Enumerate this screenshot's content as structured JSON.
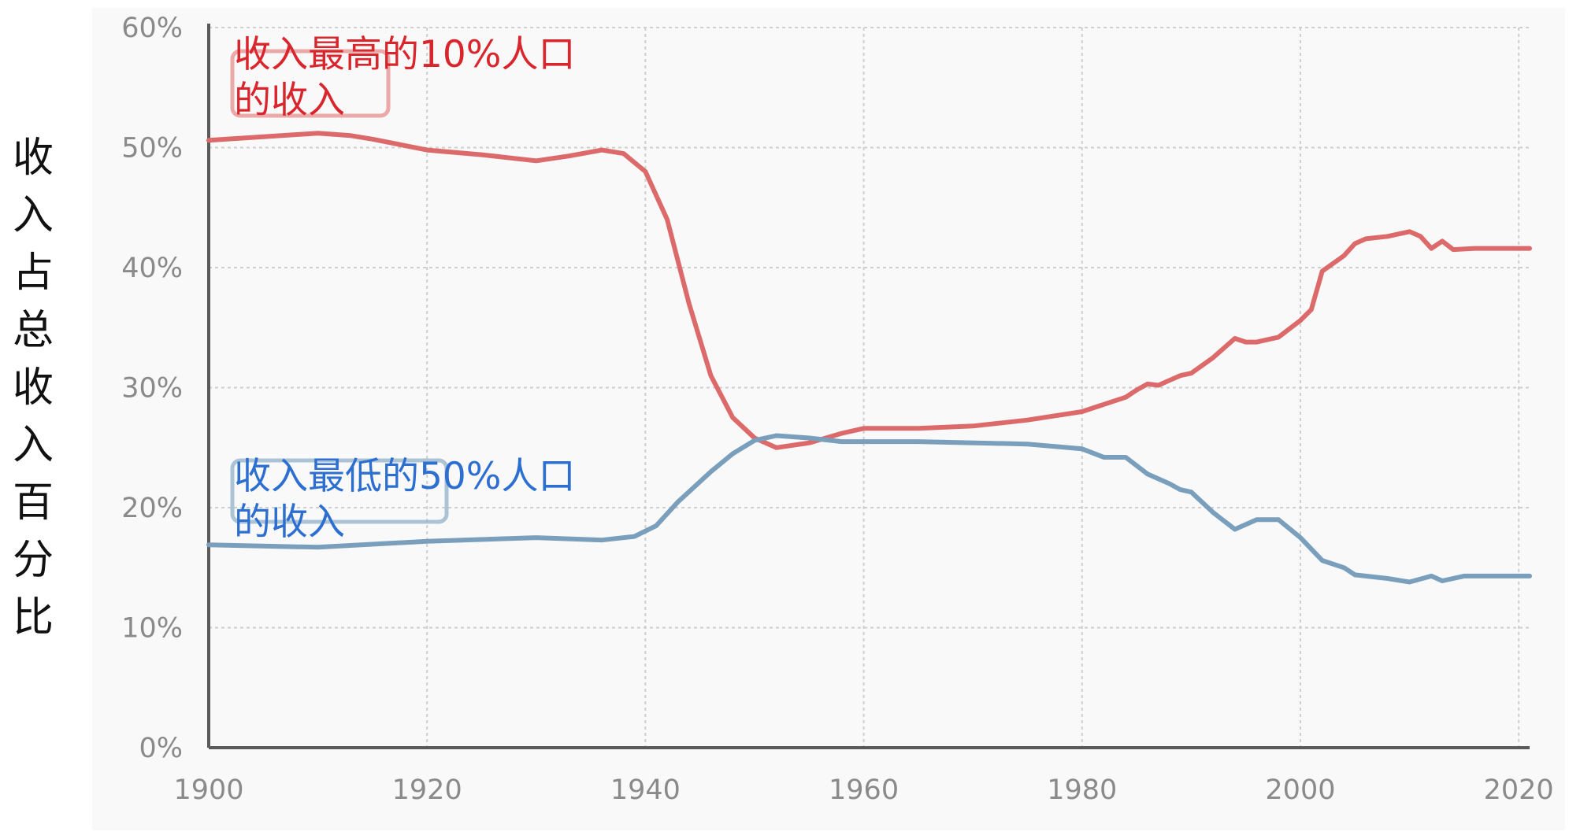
{
  "chart_data": {
    "type": "line",
    "ylabel": "收入占总收入百分比",
    "xlabel": "",
    "xlim": [
      1900,
      2021
    ],
    "ylim": [
      0,
      60
    ],
    "x_ticks": [
      "1900",
      "1920",
      "1940",
      "1960",
      "1980",
      "2000",
      "2020"
    ],
    "y_ticks": [
      "0%",
      "10%",
      "20%",
      "30%",
      "40%",
      "50%",
      "60%"
    ],
    "grid": true,
    "legend_placement": "none",
    "annotations": [
      {
        "text": "收入最高的10%人口\n的收入",
        "series": 0
      },
      {
        "text": "收入最低的50%人口\n的收入",
        "series": 1
      }
    ],
    "series": [
      {
        "name": "收入最高的10%人口的收入",
        "color": "#dc6a6a",
        "points": [
          [
            1900,
            50.6
          ],
          [
            1905,
            50.9
          ],
          [
            1910,
            51.2
          ],
          [
            1913,
            51.0
          ],
          [
            1915,
            50.7
          ],
          [
            1920,
            49.8
          ],
          [
            1925,
            49.4
          ],
          [
            1930,
            48.9
          ],
          [
            1933,
            49.3
          ],
          [
            1936,
            49.8
          ],
          [
            1938,
            49.5
          ],
          [
            1940,
            48.0
          ],
          [
            1942,
            44.0
          ],
          [
            1944,
            37.0
          ],
          [
            1946,
            31.0
          ],
          [
            1948,
            27.5
          ],
          [
            1950,
            25.8
          ],
          [
            1952,
            25.0
          ],
          [
            1955,
            25.4
          ],
          [
            1958,
            26.2
          ],
          [
            1960,
            26.6
          ],
          [
            1965,
            26.6
          ],
          [
            1970,
            26.8
          ],
          [
            1975,
            27.3
          ],
          [
            1980,
            28.0
          ],
          [
            1982,
            28.6
          ],
          [
            1984,
            29.2
          ],
          [
            1985,
            29.8
          ],
          [
            1986,
            30.3
          ],
          [
            1987,
            30.2
          ],
          [
            1988,
            30.6
          ],
          [
            1989,
            31.0
          ],
          [
            1990,
            31.2
          ],
          [
            1992,
            32.5
          ],
          [
            1994,
            34.1
          ],
          [
            1995,
            33.8
          ],
          [
            1996,
            33.8
          ],
          [
            1998,
            34.2
          ],
          [
            2000,
            35.6
          ],
          [
            2001,
            36.5
          ],
          [
            2002,
            39.7
          ],
          [
            2004,
            41.0
          ],
          [
            2005,
            42.0
          ],
          [
            2006,
            42.4
          ],
          [
            2008,
            42.6
          ],
          [
            2010,
            43.0
          ],
          [
            2011,
            42.6
          ],
          [
            2012,
            41.6
          ],
          [
            2013,
            42.2
          ],
          [
            2014,
            41.5
          ],
          [
            2016,
            41.6
          ],
          [
            2021,
            41.6
          ]
        ]
      },
      {
        "name": "收入最低的50%人口的收入",
        "color": "#7a9fbc",
        "points": [
          [
            1900,
            16.9
          ],
          [
            1910,
            16.7
          ],
          [
            1920,
            17.2
          ],
          [
            1930,
            17.5
          ],
          [
            1936,
            17.3
          ],
          [
            1939,
            17.6
          ],
          [
            1941,
            18.5
          ],
          [
            1943,
            20.5
          ],
          [
            1946,
            23.0
          ],
          [
            1948,
            24.5
          ],
          [
            1950,
            25.6
          ],
          [
            1952,
            26.0
          ],
          [
            1955,
            25.8
          ],
          [
            1958,
            25.5
          ],
          [
            1965,
            25.5
          ],
          [
            1975,
            25.3
          ],
          [
            1980,
            24.9
          ],
          [
            1982,
            24.2
          ],
          [
            1984,
            24.2
          ],
          [
            1986,
            22.8
          ],
          [
            1988,
            22.0
          ],
          [
            1989,
            21.5
          ],
          [
            1990,
            21.3
          ],
          [
            1992,
            19.6
          ],
          [
            1994,
            18.2
          ],
          [
            1996,
            19.0
          ],
          [
            1998,
            19.0
          ],
          [
            2000,
            17.5
          ],
          [
            2002,
            15.6
          ],
          [
            2004,
            15.0
          ],
          [
            2005,
            14.4
          ],
          [
            2008,
            14.1
          ],
          [
            2010,
            13.8
          ],
          [
            2012,
            14.3
          ],
          [
            2013,
            13.9
          ],
          [
            2015,
            14.3
          ],
          [
            2021,
            14.3
          ]
        ]
      }
    ]
  }
}
